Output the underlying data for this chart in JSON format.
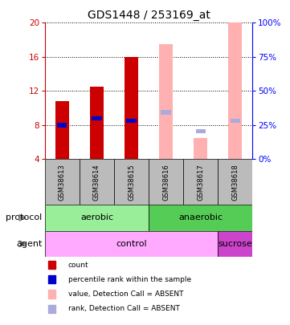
{
  "title": "GDS1448 / 253169_at",
  "samples": [
    "GSM38613",
    "GSM38614",
    "GSM38615",
    "GSM38616",
    "GSM38617",
    "GSM38618"
  ],
  "ylim_left": [
    4,
    20
  ],
  "ylim_right": [
    0,
    100
  ],
  "yticks_left": [
    4,
    8,
    12,
    16,
    20
  ],
  "yticks_right": [
    0,
    25,
    50,
    75,
    100
  ],
  "red_bars": [
    10.8,
    12.5,
    16.0,
    null,
    null,
    null
  ],
  "blue_squares_val": [
    8.0,
    8.8,
    8.5,
    null,
    null,
    null
  ],
  "pink_bars": [
    null,
    null,
    null,
    17.5,
    6.5,
    20.0
  ],
  "lightblue_squares_val": [
    null,
    null,
    null,
    9.5,
    7.3,
    8.5
  ],
  "bar_bottom": 4,
  "protocol_aerobic_color": "#99EE99",
  "protocol_anaerobic_color": "#55CC55",
  "agent_control_color": "#FFAAFF",
  "agent_sucrose_color": "#CC44CC",
  "red_color": "#CC0000",
  "blue_color": "#0000CC",
  "pink_color": "#FFB0B0",
  "lightblue_color": "#AAAADD",
  "sample_label_bg": "#BBBBBB",
  "legend_items": [
    {
      "color": "#CC0000",
      "label": "count"
    },
    {
      "color": "#0000CC",
      "label": "percentile rank within the sample"
    },
    {
      "color": "#FFB0B0",
      "label": "value, Detection Call = ABSENT"
    },
    {
      "color": "#AAAADD",
      "label": "rank, Detection Call = ABSENT"
    }
  ]
}
